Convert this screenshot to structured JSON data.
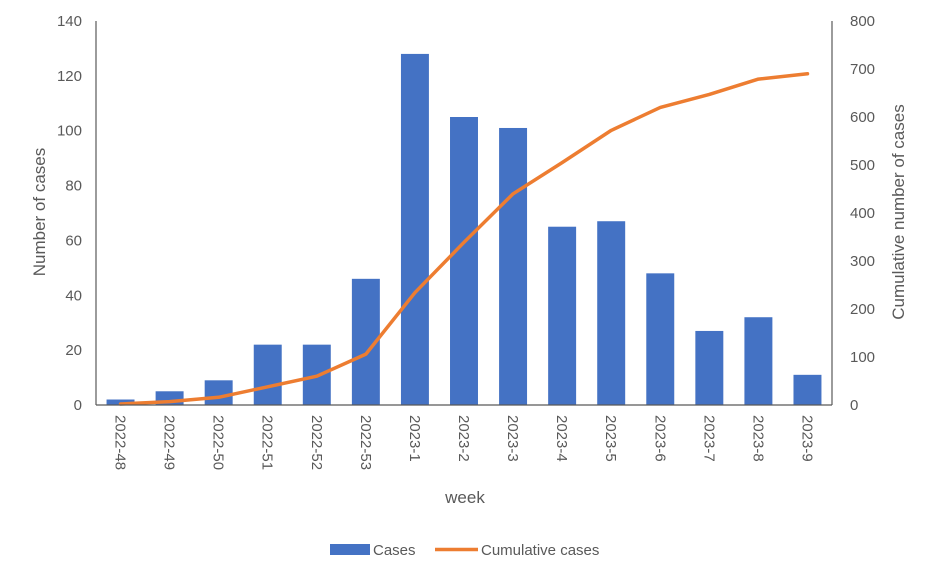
{
  "chart_data": {
    "type": "bar",
    "title": "",
    "xlabel": "week",
    "ylabel": "Number of cases",
    "y2label": "Cumulative number of cases",
    "categories": [
      "2022-48",
      "2022-49",
      "2022-50",
      "2022-51",
      "2022-52",
      "2022-53",
      "2023-1",
      "2023-2",
      "2023-3",
      "2023-4",
      "2023-5",
      "2023-6",
      "2023-7",
      "2023-8",
      "2023-9"
    ],
    "ylim": [
      0,
      140
    ],
    "yticks": [
      0,
      20,
      40,
      60,
      80,
      100,
      120,
      140
    ],
    "y2lim": [
      0,
      800
    ],
    "y2ticks": [
      0,
      100,
      200,
      300,
      400,
      500,
      600,
      700,
      800
    ],
    "grid": false,
    "legend_position": "bottom",
    "series": [
      {
        "name": "Cases",
        "type": "bar",
        "axis": "left",
        "color": "#4472C4",
        "values": [
          2,
          5,
          9,
          22,
          22,
          46,
          128,
          105,
          101,
          65,
          67,
          48,
          27,
          32,
          11
        ]
      },
      {
        "name": "Cumulative cases",
        "type": "line",
        "axis": "right",
        "color": "#ED7D31",
        "values": [
          2,
          7,
          16,
          38,
          60,
          106,
          234,
          339,
          440,
          505,
          572,
          620,
          647,
          679,
          690
        ]
      }
    ]
  }
}
